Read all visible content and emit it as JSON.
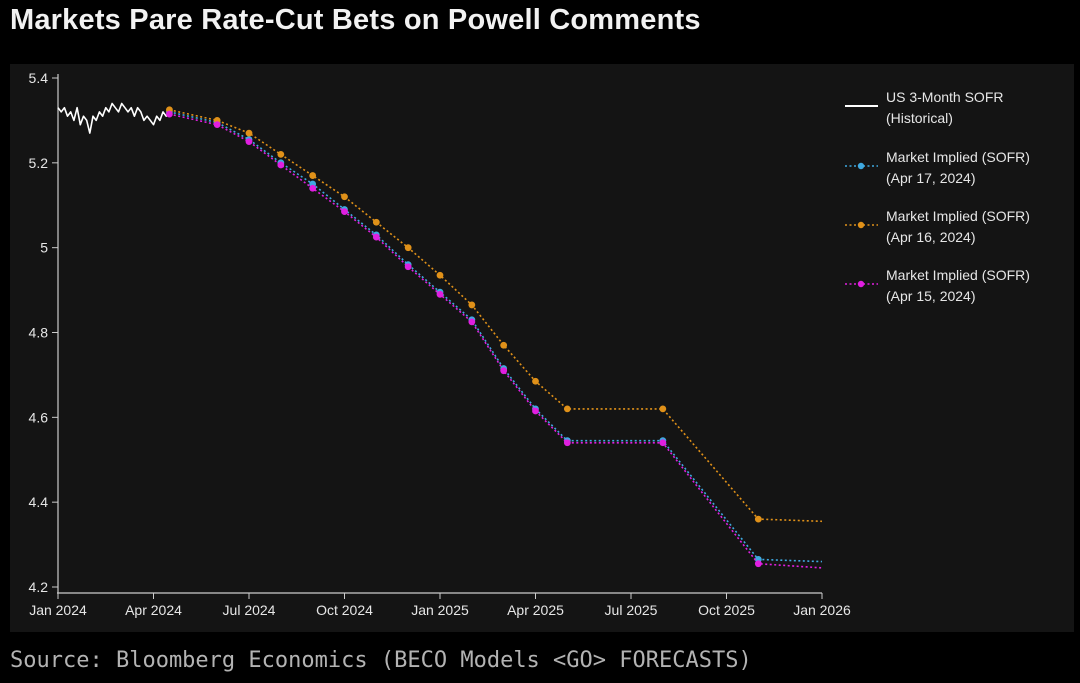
{
  "title": "Markets Pare Rate-Cut Bets on Powell Comments",
  "source": "Source: Bloomberg Economics (BECO Models <GO> FORECASTS)",
  "colors": {
    "background": "#141414",
    "axis": "#cccccc",
    "text": "#e6e6e6",
    "historical": "#ffffff",
    "apr17": "#3fa9e0",
    "apr16": "#e09119",
    "apr15": "#e01fe0"
  },
  "chart_data": {
    "type": "line",
    "title": "Markets Pare Rate-Cut Bets on Powell Comments",
    "xlabel": "",
    "ylabel": "",
    "ylim": [
      4.2,
      5.4
    ],
    "yticks": [
      4.2,
      4.4,
      4.6,
      4.8,
      5.0,
      5.2,
      5.4
    ],
    "ytick_labels": [
      "4.2",
      "4.4",
      "4.6",
      "4.8",
      "5",
      "5.2",
      "5.4"
    ],
    "xlim_months": [
      0,
      24
    ],
    "xticks": [
      {
        "m": 0,
        "label": "Jan 2024"
      },
      {
        "m": 3,
        "label": "Apr 2024"
      },
      {
        "m": 6,
        "label": "Jul 2024"
      },
      {
        "m": 9,
        "label": "Oct 2024"
      },
      {
        "m": 12,
        "label": "Jan 2025"
      },
      {
        "m": 15,
        "label": "Apr 2025"
      },
      {
        "m": 18,
        "label": "Jul 2025"
      },
      {
        "m": 21,
        "label": "Oct 2025"
      },
      {
        "m": 24,
        "label": "Jan 2026"
      }
    ],
    "legend_position": "right",
    "series": [
      {
        "name": "US 3-Month SOFR (Historical)",
        "legend_line1": "US 3-Month SOFR",
        "legend_line2": "(Historical)",
        "style": "solid",
        "color_key": "historical",
        "x": [
          0.0,
          0.1,
          0.2,
          0.3,
          0.4,
          0.5,
          0.6,
          0.7,
          0.8,
          0.9,
          1.0,
          1.1,
          1.2,
          1.3,
          1.4,
          1.5,
          1.6,
          1.7,
          1.8,
          1.9,
          2.0,
          2.1,
          2.2,
          2.3,
          2.4,
          2.5,
          2.6,
          2.7,
          2.8,
          2.9,
          3.0,
          3.1,
          3.2,
          3.3,
          3.4,
          3.5
        ],
        "values": [
          5.33,
          5.32,
          5.33,
          5.31,
          5.32,
          5.3,
          5.33,
          5.29,
          5.31,
          5.3,
          5.27,
          5.31,
          5.3,
          5.32,
          5.31,
          5.33,
          5.32,
          5.34,
          5.33,
          5.32,
          5.34,
          5.33,
          5.32,
          5.33,
          5.31,
          5.33,
          5.32,
          5.3,
          5.31,
          5.3,
          5.29,
          5.31,
          5.3,
          5.32,
          5.31,
          5.32
        ]
      },
      {
        "name": "Market Implied (SOFR) (Apr 17, 2024)",
        "legend_line1": "Market Implied (SOFR)",
        "legend_line2": "(Apr 17, 2024)",
        "style": "dotted",
        "color_key": "apr17",
        "x": [
          3.5,
          5.0,
          6.0,
          7.0,
          8.0,
          9.0,
          10.0,
          11.0,
          12.0,
          13.0,
          14.0,
          15.0,
          16.0,
          19.0,
          22.0,
          24.0
        ],
        "values": [
          5.32,
          5.295,
          5.255,
          5.2,
          5.15,
          5.09,
          5.03,
          4.96,
          4.895,
          4.83,
          4.715,
          4.62,
          4.545,
          4.545,
          4.265,
          4.26
        ]
      },
      {
        "name": "Market Implied (SOFR) (Apr 16, 2024)",
        "legend_line1": "Market Implied (SOFR)",
        "legend_line2": "(Apr 16, 2024)",
        "style": "dotted",
        "color_key": "apr16",
        "x": [
          3.5,
          5.0,
          6.0,
          7.0,
          8.0,
          9.0,
          10.0,
          11.0,
          12.0,
          13.0,
          14.0,
          15.0,
          16.0,
          19.0,
          22.0,
          24.0
        ],
        "values": [
          5.325,
          5.3,
          5.27,
          5.22,
          5.17,
          5.12,
          5.06,
          5.0,
          4.935,
          4.865,
          4.77,
          4.685,
          4.62,
          4.62,
          4.36,
          4.355
        ]
      },
      {
        "name": "Market Implied (SOFR) (Apr 15, 2024)",
        "legend_line1": "Market Implied (SOFR)",
        "legend_line2": "(Apr 15, 2024)",
        "style": "dotted",
        "color_key": "apr15",
        "x": [
          3.5,
          5.0,
          6.0,
          7.0,
          8.0,
          9.0,
          10.0,
          11.0,
          12.0,
          13.0,
          14.0,
          15.0,
          16.0,
          19.0,
          22.0,
          24.0
        ],
        "values": [
          5.315,
          5.29,
          5.25,
          5.195,
          5.14,
          5.085,
          5.025,
          4.955,
          4.89,
          4.825,
          4.71,
          4.615,
          4.54,
          4.54,
          4.255,
          4.245
        ]
      }
    ]
  }
}
